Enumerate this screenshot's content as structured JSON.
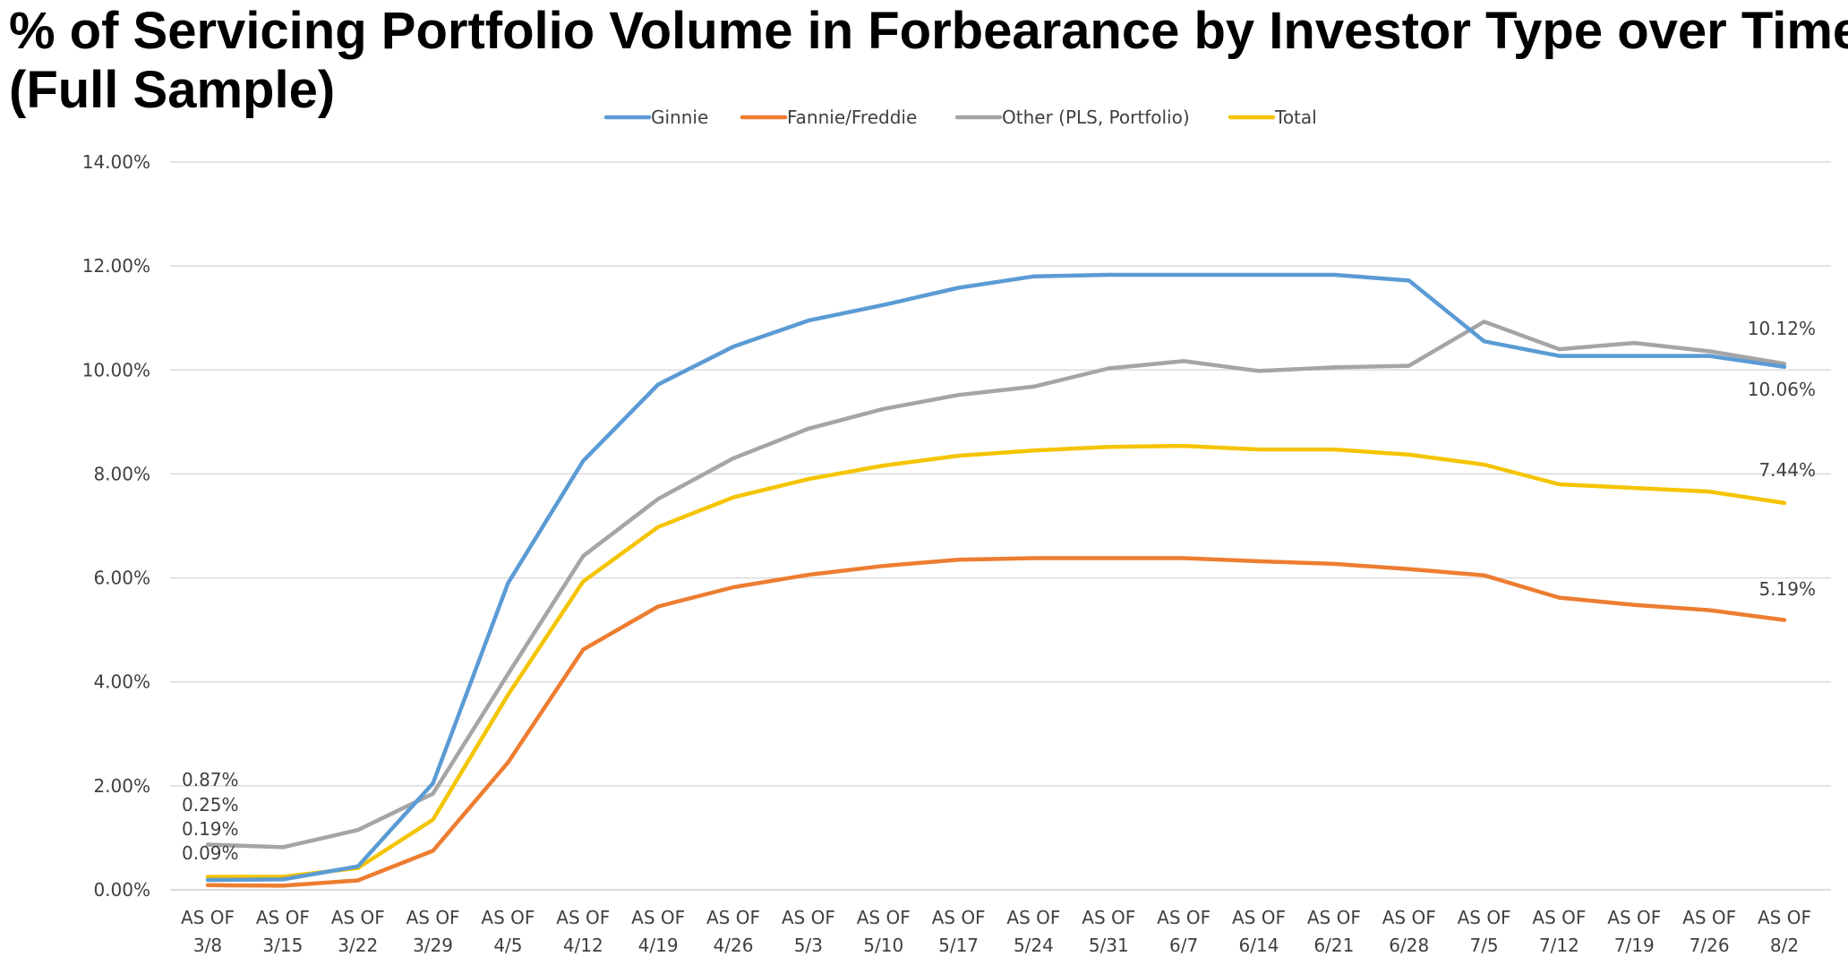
{
  "title_line1": "% of Servicing Portfolio Volume in Forbearance by Investor Type over Time",
  "title_line2": "(Full Sample)",
  "chart_data": {
    "type": "line",
    "title": "% of Servicing Portfolio Volume in Forbearance by Investor Type over Time (Full Sample)",
    "xlabel": "",
    "ylabel": "",
    "categories": [
      [
        "AS OF",
        "3/8"
      ],
      [
        "AS OF",
        "3/15"
      ],
      [
        "AS OF",
        "3/22"
      ],
      [
        "AS OF",
        "3/29"
      ],
      [
        "AS OF",
        "4/5"
      ],
      [
        "AS OF",
        "4/12"
      ],
      [
        "AS OF",
        "4/19"
      ],
      [
        "AS OF",
        "4/26"
      ],
      [
        "AS OF",
        "5/3"
      ],
      [
        "AS OF",
        "5/10"
      ],
      [
        "AS OF",
        "5/17"
      ],
      [
        "AS OF",
        "5/24"
      ],
      [
        "AS OF",
        "5/31"
      ],
      [
        "AS OF",
        "6/7"
      ],
      [
        "AS OF",
        "6/14"
      ],
      [
        "AS OF",
        "6/21"
      ],
      [
        "AS OF",
        "6/28"
      ],
      [
        "AS OF",
        "7/5"
      ],
      [
        "AS OF",
        "7/12"
      ],
      [
        "AS OF",
        "7/19"
      ],
      [
        "AS OF",
        "7/26"
      ],
      [
        "AS OF",
        "8/2"
      ]
    ],
    "ylim": [
      0,
      14
    ],
    "yticks": [
      0,
      2,
      4,
      6,
      8,
      10,
      12,
      14
    ],
    "ytick_labels": [
      "0.00%",
      "2.00%",
      "4.00%",
      "6.00%",
      "8.00%",
      "10.00%",
      "12.00%",
      "14.00%"
    ],
    "grid": true,
    "legend_position": "top",
    "series": [
      {
        "name": "Ginnie",
        "color": "#5B9BD5",
        "values": [
          0.19,
          0.2,
          0.45,
          2.05,
          5.9,
          8.25,
          9.72,
          10.45,
          10.95,
          11.25,
          11.58,
          11.8,
          11.83,
          11.83,
          11.83,
          11.83,
          11.72,
          10.55,
          10.27,
          10.27,
          10.27,
          10.06
        ]
      },
      {
        "name": "Fannie/Freddie",
        "color": "#ED7D31",
        "values": [
          0.09,
          0.08,
          0.18,
          0.75,
          2.45,
          4.62,
          5.45,
          5.82,
          6.06,
          6.23,
          6.35,
          6.38,
          6.38,
          6.38,
          6.32,
          6.27,
          6.17,
          6.05,
          5.62,
          5.48,
          5.38,
          5.19
        ]
      },
      {
        "name": "Other (PLS, Portfolio)",
        "color": "#A5A5A5",
        "values": [
          0.87,
          0.82,
          1.15,
          1.85,
          4.15,
          6.42,
          7.52,
          8.3,
          8.87,
          9.25,
          9.52,
          9.68,
          10.03,
          10.17,
          9.98,
          10.05,
          10.08,
          10.93,
          10.4,
          10.52,
          10.36,
          10.12
        ]
      },
      {
        "name": "Total",
        "color": "#F5C400",
        "values": [
          0.25,
          0.25,
          0.42,
          1.35,
          3.75,
          5.93,
          6.98,
          7.55,
          7.9,
          8.16,
          8.35,
          8.45,
          8.52,
          8.54,
          8.47,
          8.47,
          8.37,
          8.18,
          7.8,
          7.73,
          7.66,
          7.44
        ]
      }
    ],
    "annotations": {
      "start": [
        "0.87%",
        "0.25%",
        "0.19%",
        "0.09%"
      ],
      "end": [
        "10.12%",
        "10.06%",
        "7.44%",
        "5.19%"
      ]
    }
  }
}
